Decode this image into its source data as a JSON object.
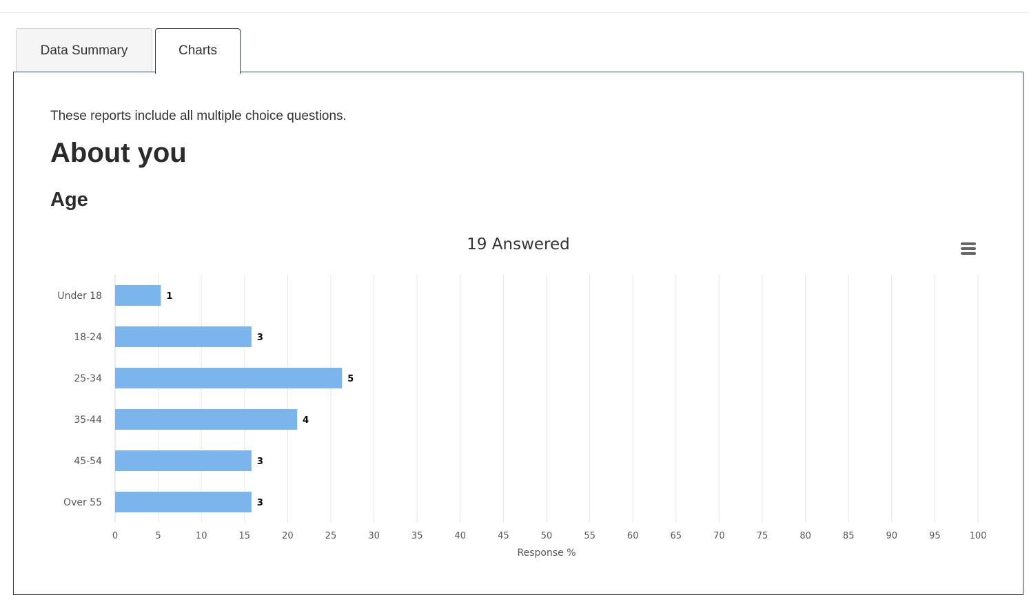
{
  "tabs": [
    {
      "label": "Data Summary",
      "active": false
    },
    {
      "label": "Charts",
      "active": true
    }
  ],
  "intro_text": "These reports include all multiple choice questions.",
  "section_title": "About you",
  "question_title": "Age",
  "colors": {
    "bar": "#7cb5ec",
    "panel_border": "#2c3e50",
    "grid": "#e6e6e6"
  },
  "menu_icon": "hamburger-menu-icon",
  "chart_data": {
    "type": "bar",
    "orientation": "horizontal",
    "title": "19 Answered",
    "categories": [
      "Under 18",
      "18-24",
      "25-34",
      "35-44",
      "45-54",
      "Over 55"
    ],
    "values": [
      5.3,
      15.8,
      26.3,
      21.1,
      15.8,
      15.8
    ],
    "data_labels": [
      "1",
      "3",
      "5",
      "4",
      "3",
      "3"
    ],
    "xlabel": "Response %",
    "ylabel": "",
    "xlim": [
      0,
      100
    ],
    "xticks": [
      "0",
      "5",
      "10",
      "15",
      "20",
      "25",
      "30",
      "35",
      "40",
      "45",
      "50",
      "55",
      "60",
      "65",
      "70",
      "75",
      "80",
      "85",
      "90",
      "95",
      "100"
    ],
    "grid": true,
    "legend": "none"
  }
}
